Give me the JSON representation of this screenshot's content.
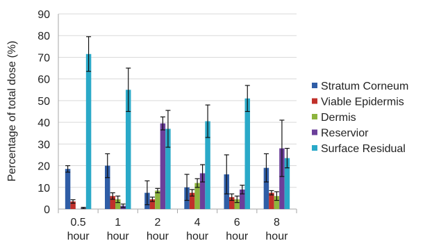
{
  "chart_data": {
    "type": "bar",
    "title": "",
    "xlabel": "",
    "ylabel": "Percentage of total dose (%)",
    "ylim": [
      0,
      90
    ],
    "yticks": [
      0,
      10,
      20,
      30,
      40,
      50,
      60,
      70,
      80,
      90
    ],
    "categories": [
      {
        "line1": "0.5",
        "line2": "hour"
      },
      {
        "line1": "1",
        "line2": "hour"
      },
      {
        "line1": "2",
        "line2": "hour"
      },
      {
        "line1": "4",
        "line2": "hour"
      },
      {
        "line1": "6",
        "line2": "hour"
      },
      {
        "line1": "8",
        "line2": "hour"
      }
    ],
    "grid": true,
    "legend_position": "right",
    "series": [
      {
        "name": "Stratum Corneum",
        "color": "#2F5DA6",
        "values": [
          18.5,
          20,
          7.5,
          10,
          16,
          19
        ],
        "errors": [
          1.5,
          5.5,
          5.5,
          6,
          9,
          6.5
        ]
      },
      {
        "name": "Viable Epidermis",
        "color": "#C0302A",
        "values": [
          3.5,
          6,
          4.5,
          7.5,
          5.5,
          7.5
        ],
        "errors": [
          0.8,
          1.5,
          1,
          1.5,
          1.5,
          1
        ]
      },
      {
        "name": "Dermis",
        "color": "#8DB43E",
        "values": [
          0,
          4.5,
          8.5,
          12,
          4.5,
          6
        ],
        "errors": [
          0,
          1.5,
          1,
          2,
          1.5,
          2
        ]
      },
      {
        "name": "Reservior",
        "color": "#6B3F9A",
        "values": [
          0.5,
          1.5,
          39.5,
          16.5,
          9,
          28
        ],
        "errors": [
          0.3,
          0.8,
          3,
          4,
          2,
          13
        ]
      },
      {
        "name": "Surface Residual",
        "color": "#2AA9C8",
        "values": [
          71.5,
          55,
          37,
          40.5,
          51,
          23.5
        ],
        "errors": [
          8,
          10,
          8.5,
          7.5,
          6,
          4.5
        ]
      }
    ]
  }
}
